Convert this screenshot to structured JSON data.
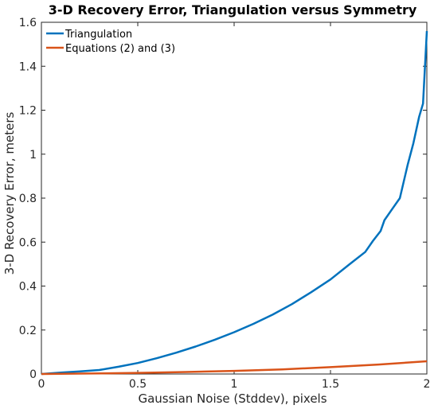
{
  "chart_data": {
    "type": "line",
    "title": "3-D Recovery Error, Triangulation versus Symmetry",
    "xlabel": "Gaussian Noise (Stddev), pixels",
    "ylabel": "3-D Recovery Error, meters",
    "xlim": [
      0,
      2
    ],
    "ylim": [
      0,
      1.6
    ],
    "xticks": [
      0,
      0.5,
      1,
      1.5,
      2
    ],
    "xtick_labels": [
      "0",
      "0.5",
      "1",
      "1.5",
      "2"
    ],
    "yticks": [
      0,
      0.2,
      0.4,
      0.6,
      0.8,
      1.0,
      1.2,
      1.4,
      1.6
    ],
    "ytick_labels": [
      "0",
      "0.2",
      "0.4",
      "0.6",
      "0.8",
      "1",
      "1.2",
      "1.4",
      "1.6"
    ],
    "grid": false,
    "legend": "top-left",
    "series": [
      {
        "name": "Triangulation",
        "color": "#0072BD",
        "x": [
          0,
          0.1,
          0.2,
          0.3,
          0.4,
          0.5,
          0.6,
          0.7,
          0.8,
          0.9,
          1.0,
          1.1,
          1.2,
          1.3,
          1.4,
          1.5,
          1.6,
          1.68,
          1.7,
          1.72,
          1.76,
          1.78,
          1.82,
          1.86,
          1.9,
          1.93,
          1.96,
          1.98,
          2.0
        ],
        "y": [
          0,
          0.006,
          0.012,
          0.018,
          0.033,
          0.05,
          0.072,
          0.097,
          0.125,
          0.156,
          0.19,
          0.228,
          0.27,
          0.318,
          0.372,
          0.43,
          0.5,
          0.555,
          0.58,
          0.605,
          0.65,
          0.7,
          0.75,
          0.8,
          0.95,
          1.05,
          1.17,
          1.23,
          1.56
        ]
      },
      {
        "name": "Equations (2) and (3)",
        "color": "#D95319",
        "x": [
          0,
          0.25,
          0.5,
          0.75,
          1.0,
          1.25,
          1.5,
          1.75,
          2.0
        ],
        "y": [
          0,
          0.002,
          0.005,
          0.009,
          0.014,
          0.021,
          0.031,
          0.043,
          0.058
        ]
      }
    ]
  }
}
